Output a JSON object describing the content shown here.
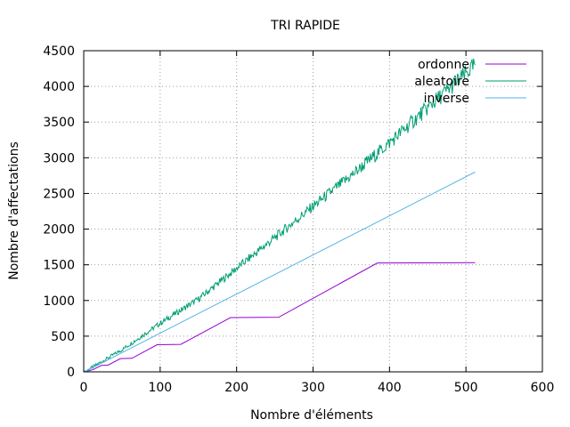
{
  "chart_data": {
    "type": "line",
    "title": "TRI RAPIDE",
    "xlabel": "Nombre d'éléments",
    "ylabel": "Nombre d'affectations",
    "xlim": [
      0,
      600
    ],
    "ylim": [
      0,
      4500
    ],
    "xticks": [
      0,
      100,
      200,
      300,
      400,
      500,
      600
    ],
    "yticks": [
      0,
      500,
      1000,
      1500,
      2000,
      2500,
      3000,
      3500,
      4000,
      4500
    ],
    "grid": true,
    "legend_position": "top-right",
    "series": [
      {
        "name": "ordonne",
        "color": "#9400d3",
        "x": [
          1,
          12,
          23,
          32,
          48,
          63,
          96,
          127,
          192,
          255,
          384,
          512
        ],
        "y": [
          0,
          30,
          90,
          95,
          185,
          190,
          380,
          385,
          760,
          765,
          1525,
          1530
        ]
      },
      {
        "name": "aleatoire",
        "color": "#009e73",
        "x": [
          1,
          50,
          100,
          150,
          200,
          250,
          300,
          350,
          400,
          450,
          500,
          512
        ],
        "y": [
          0,
          310,
          680,
          1020,
          1450,
          1880,
          2320,
          2750,
          3210,
          3700,
          4180,
          4300
        ]
      },
      {
        "name": "inverse",
        "color": "#56b4e9",
        "x": [
          1,
          512
        ],
        "y": [
          0,
          2800
        ]
      }
    ]
  }
}
